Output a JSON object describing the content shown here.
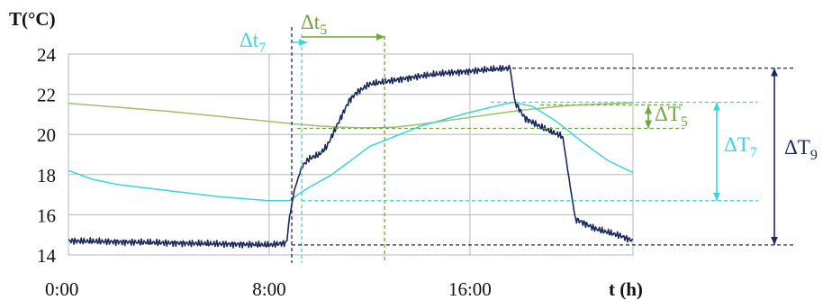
{
  "colors": {
    "series_dark": "#1b2a5c",
    "series_cyan": "#38d6dc",
    "series_green": "#98c36a",
    "annot_green": "#6ca83a",
    "grid": "#b7b7b7",
    "axis_text": "#111111"
  },
  "chart_data": {
    "type": "line",
    "title": "",
    "ylabel": "T(°C)",
    "xlabel": "t (h)",
    "xlim": [
      0,
      22.5
    ],
    "ylim": [
      14,
      24
    ],
    "grid": true,
    "x_ticks": [
      {
        "value": 0,
        "label": "0:00"
      },
      {
        "value": 8,
        "label": "8:00"
      },
      {
        "value": 16,
        "label": "16:00"
      }
    ],
    "y_ticks": [
      14,
      16,
      18,
      20,
      22,
      24
    ],
    "series": [
      {
        "key": "dark",
        "color_key": "series_dark",
        "noise_amplitude": 0.15,
        "x": [
          0,
          2,
          4,
          6,
          8,
          8.7,
          8.8,
          9.0,
          9.3,
          9.6,
          10.0,
          10.3,
          10.8,
          11.2,
          11.5,
          12.0,
          13.0,
          14.0,
          15.0,
          16.0,
          17.0,
          17.6,
          17.8,
          18.2,
          18.8,
          19.3,
          19.7,
          19.9,
          20.2,
          21.0,
          22.0,
          22.5
        ],
        "y": [
          14.7,
          14.65,
          14.6,
          14.55,
          14.5,
          14.6,
          15.8,
          17.2,
          18.4,
          18.8,
          19.0,
          19.4,
          20.7,
          21.7,
          22.1,
          22.5,
          22.7,
          22.9,
          23.05,
          23.15,
          23.25,
          23.3,
          21.6,
          20.8,
          20.4,
          20.1,
          19.9,
          18.2,
          15.8,
          15.3,
          14.95,
          14.7
        ]
      },
      {
        "key": "cyan",
        "color_key": "series_cyan",
        "noise_amplitude": 0,
        "x": [
          0,
          1,
          2,
          4,
          6,
          8,
          8.8,
          9.5,
          10.5,
          12,
          14,
          16,
          17,
          17.7,
          18.5,
          19.5,
          20.5,
          21.5,
          22.5
        ],
        "y": [
          18.2,
          17.75,
          17.5,
          17.2,
          16.9,
          16.7,
          16.7,
          17.3,
          18.0,
          19.4,
          20.4,
          21.1,
          21.4,
          21.6,
          21.4,
          20.6,
          19.6,
          18.7,
          18.1
        ]
      },
      {
        "key": "green",
        "color_key": "series_green",
        "noise_amplitude": 0,
        "x": [
          0,
          2,
          4,
          6,
          8,
          9,
          10,
          11,
          12,
          13,
          14,
          16,
          18,
          20,
          22,
          22.5
        ],
        "y": [
          21.55,
          21.35,
          21.15,
          20.9,
          20.65,
          20.52,
          20.42,
          20.35,
          20.33,
          20.36,
          20.5,
          20.85,
          21.2,
          21.45,
          21.55,
          21.58
        ]
      }
    ],
    "annotations": {
      "dt7": {
        "label": "Δt",
        "sub": "7",
        "x_start": 8.9,
        "x_end": 9.3
      },
      "dt5": {
        "label": "Δt",
        "sub": "5",
        "x_start": 9.3,
        "x_end": 12.6
      },
      "dT5": {
        "label": "ΔT",
        "sub": "5",
        "y_low": 20.3,
        "y_high": 21.6
      },
      "dT7": {
        "label": "ΔT",
        "sub": "7",
        "y_low": 16.7,
        "y_high": 21.6
      },
      "dT9": {
        "label": "ΔT",
        "sub": "9",
        "y_low": 14.5,
        "y_high": 23.3
      }
    }
  }
}
